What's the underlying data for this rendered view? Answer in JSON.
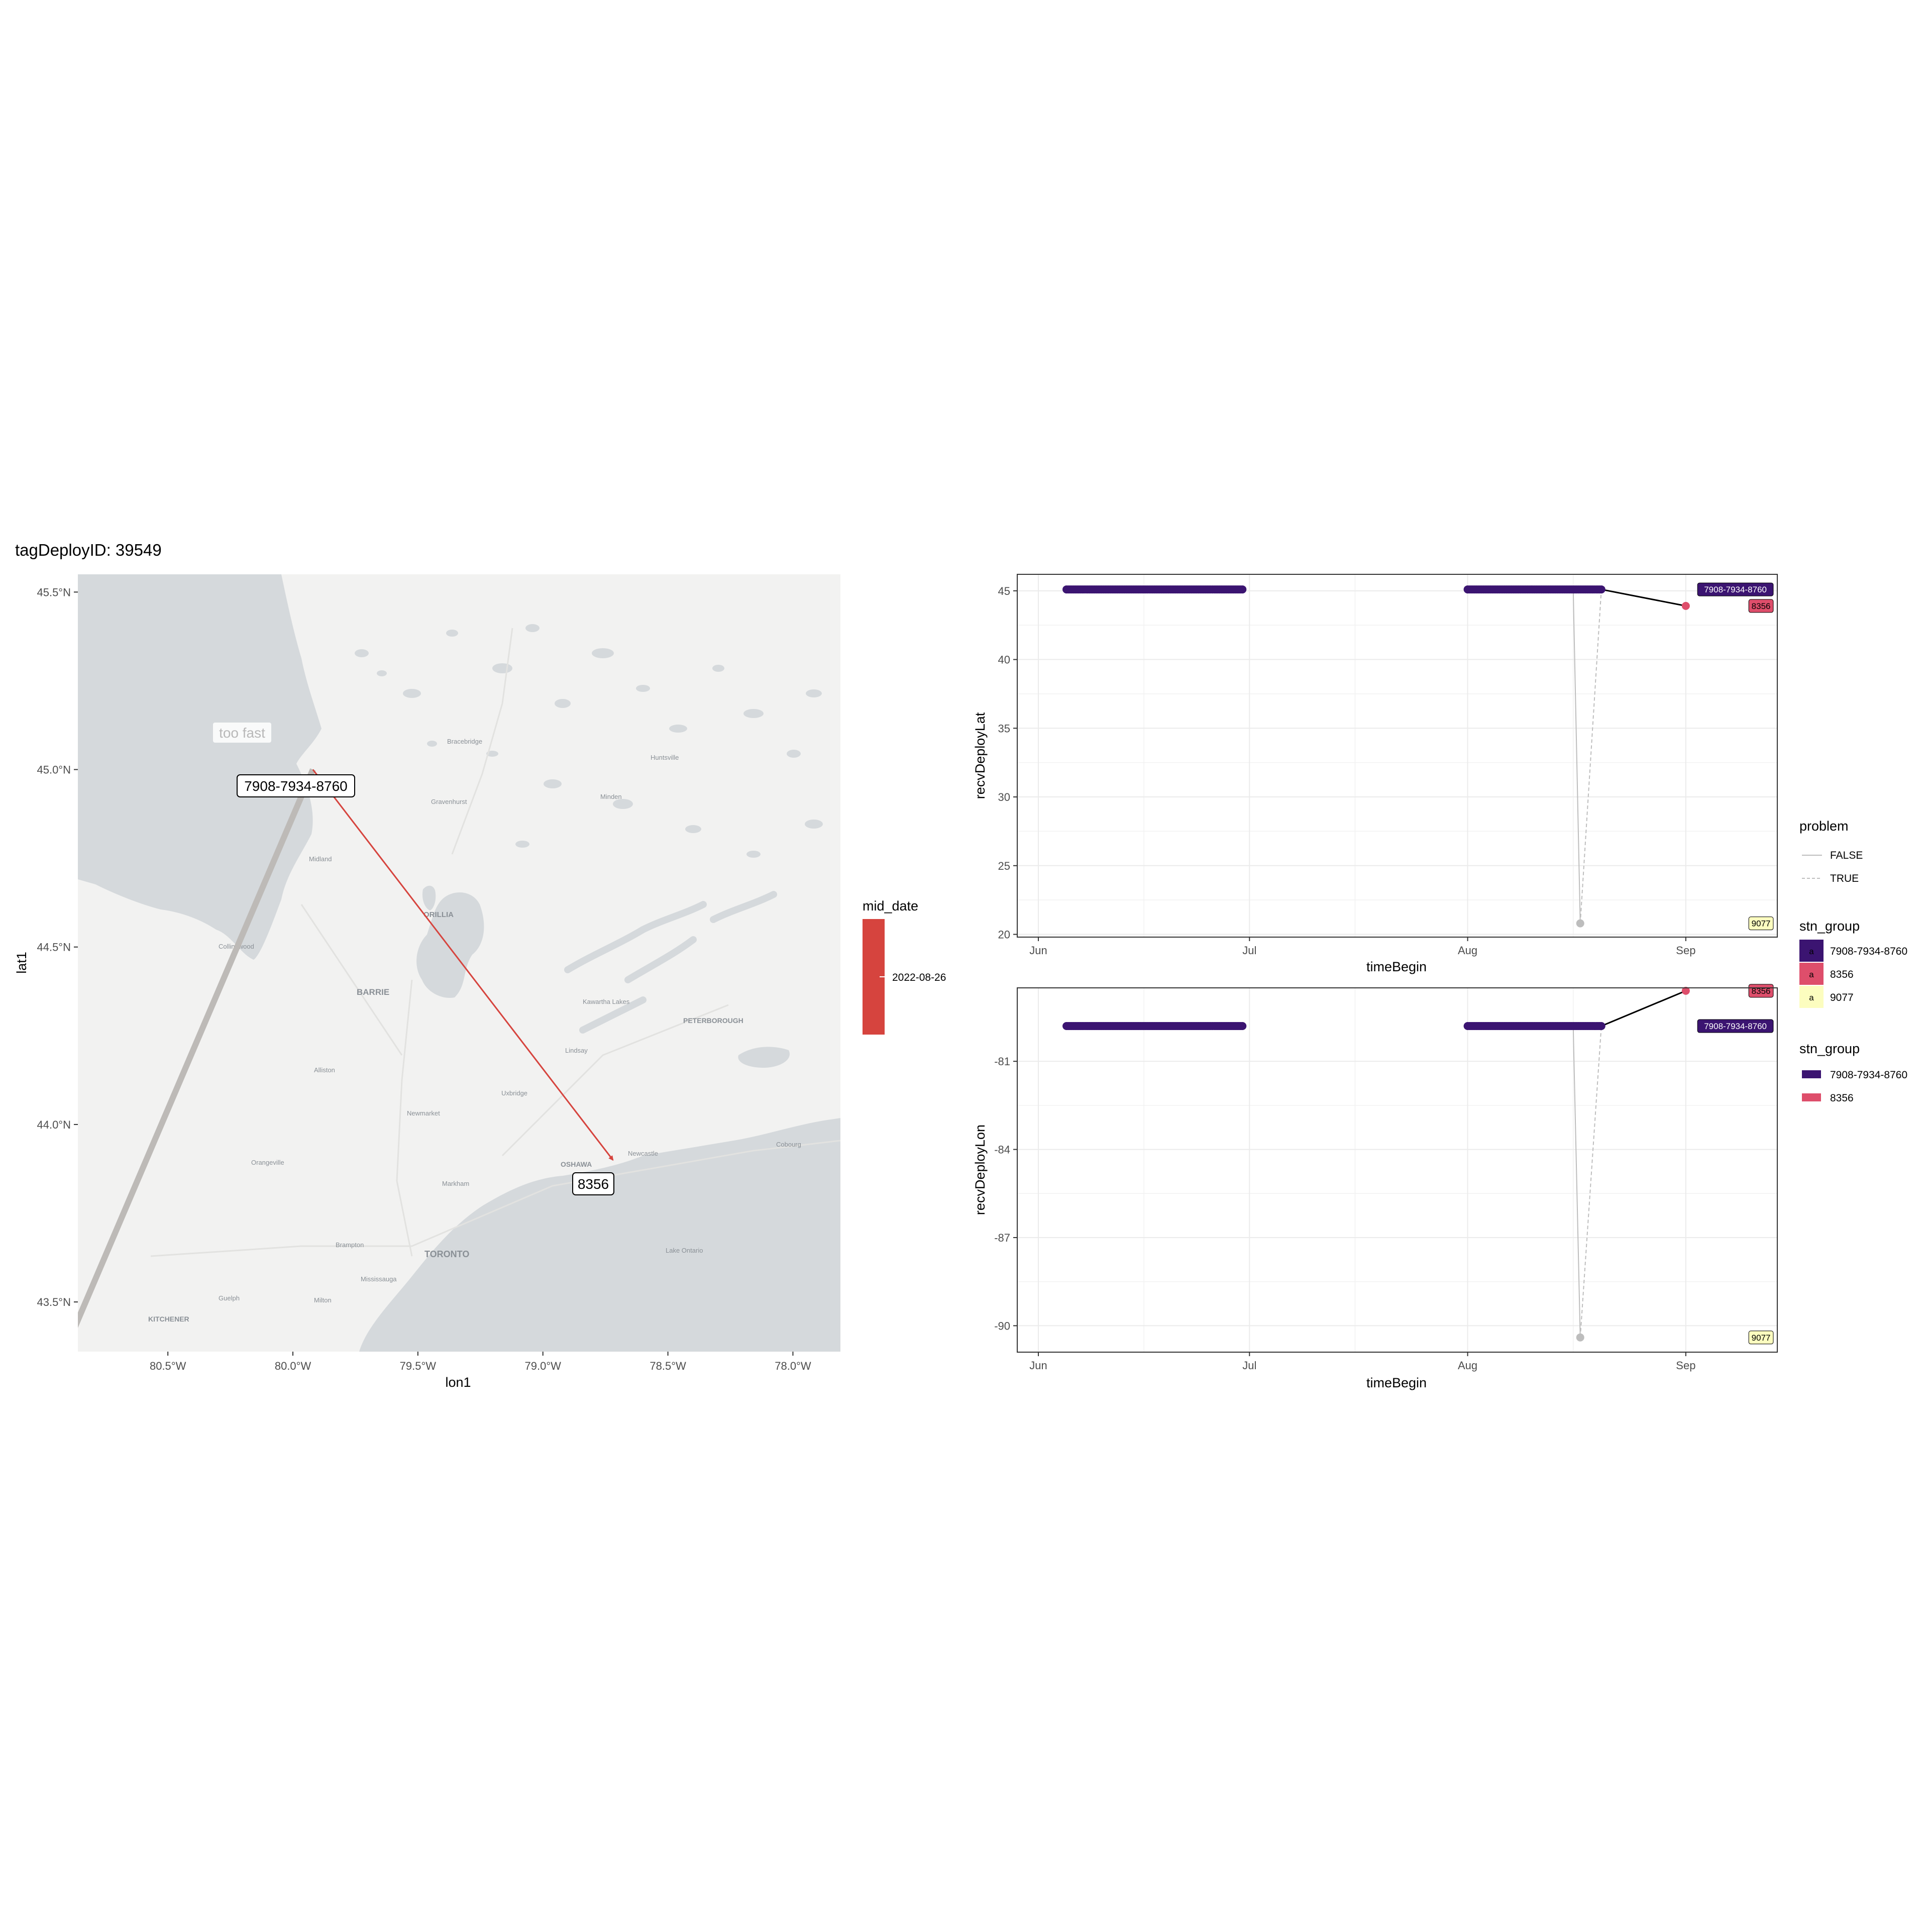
{
  "title": "tagDeployID: 39549",
  "map": {
    "xlabel": "lon1",
    "ylabel": "lat1",
    "x_ticks": [
      "80.5°W",
      "80.0°W",
      "79.5°W",
      "79.0°W",
      "78.5°W",
      "78.0°W"
    ],
    "x_tick_values": [
      -80.5,
      -80.0,
      -79.5,
      -79.0,
      -78.5,
      -78.0
    ],
    "y_ticks": [
      "45.5°N",
      "45.0°N",
      "44.5°N",
      "44.0°N",
      "43.5°N"
    ],
    "y_tick_values": [
      45.5,
      45.0,
      44.5,
      44.0,
      43.5
    ],
    "xlim": [
      -80.86,
      -77.81
    ],
    "ylim": [
      43.36,
      45.55
    ],
    "place_names": {
      "barrie": "BARRIE",
      "orillia": "ORILLIA",
      "toronto": "TORONTO",
      "oshawa": "OSHAWA",
      "peterborough": "PETERBOROUGH",
      "kitchener": "KITCHENER",
      "bracebridge": "Bracebridge",
      "huntsville": "Huntsville",
      "gravenhurst": "Gravenhurst",
      "newmarket": "Newmarket",
      "guelph": "Guelph",
      "brampton": "Brampton",
      "markham": "Markham",
      "kawartha": "Kawartha Lakes",
      "lindsay": "Lindsay",
      "uxbridge": "Uxbridge",
      "cobourg": "Cobourg",
      "orangeville": "Orangeville",
      "milton": "Milton",
      "mississauga": "Mississauga",
      "alliston": "Alliston",
      "collingwood": "Collingwood",
      "midland": "Midland",
      "newcastle": "Newcastle",
      "minden": "Minden",
      "lake_ontario": "Lake Ontario"
    },
    "labels": {
      "too_fast": "too fast",
      "stn_a": "7908-7934-8760",
      "stn_b": "8356"
    },
    "tracks": [
      {
        "from": [
          -80.95,
          43.3
        ],
        "to": [
          -79.92,
          45.0
        ],
        "problem": true,
        "color": "#bdbab7"
      },
      {
        "from": [
          -79.92,
          45.0
        ],
        "to": [
          -78.72,
          43.9
        ],
        "problem": false,
        "color": "#d6443e"
      }
    ],
    "colors": {
      "land": "#f2f2f1",
      "water": "#d5d9dc",
      "track": "#d6443e",
      "problem_track": "#bdbab7"
    }
  },
  "mid_date_legend": {
    "title": "mid_date",
    "label": "2022-08-26",
    "color": "#d6443e"
  },
  "legends": {
    "problem": {
      "title": "problem",
      "items": [
        {
          "label": "FALSE",
          "style": "solid"
        },
        {
          "label": "TRUE",
          "style": "dashed"
        }
      ]
    },
    "stn_group_fill": {
      "title": "stn_group",
      "key_text": "a",
      "items": [
        {
          "label": "7908-7934-8760",
          "color": "#3b1471"
        },
        {
          "label": "8356",
          "color": "#de4e6b"
        },
        {
          "label": "9077",
          "color": "#fcfdbf"
        }
      ]
    },
    "stn_group_line": {
      "title": "stn_group",
      "items": [
        {
          "label": "7908-7934-8760",
          "color": "#3b1471"
        },
        {
          "label": "8356",
          "color": "#de4e6b"
        }
      ]
    }
  },
  "chart_data": [
    {
      "type": "scatter",
      "xlabel": "timeBegin",
      "ylabel": "recvDeployLat",
      "x_ticks": [
        "Jun",
        "Jul",
        "Aug",
        "Sep"
      ],
      "x_tick_values": [
        "2022-06-01",
        "2022-07-01",
        "2022-08-01",
        "2022-09-01"
      ],
      "xlim": [
        "2022-05-29",
        "2022-09-14"
      ],
      "y_ticks": [
        "20",
        "25",
        "30",
        "35",
        "40",
        "45"
      ],
      "y_tick_values": [
        20,
        25,
        30,
        35,
        40,
        45
      ],
      "ylim": [
        19.8,
        46.2
      ],
      "grid": true,
      "series": [
        {
          "name": "7908-7934-8760",
          "color": "#3b1471",
          "x_range": [
            [
              "2022-06-05",
              "2022-06-30"
            ],
            [
              "2022-08-01",
              "2022-08-20"
            ]
          ],
          "y": 45.1
        },
        {
          "name": "8356",
          "color": "#de4e6b",
          "x": [
            "2022-09-01"
          ],
          "y": [
            43.9
          ]
        },
        {
          "name": "9077",
          "color": "#bdbdbd",
          "x": [
            "2022-08-17"
          ],
          "y": [
            20.8
          ]
        }
      ],
      "path": {
        "solid_gray": [
          [
            "2022-08-16",
            45.1
          ],
          [
            "2022-08-17",
            20.8
          ]
        ],
        "dashed_gray": [
          [
            "2022-08-17",
            20.8
          ],
          [
            "2022-08-20",
            45.1
          ]
        ],
        "black": [
          [
            "2022-08-20",
            45.1
          ],
          [
            "2022-09-01",
            43.9
          ]
        ]
      },
      "end_labels": [
        {
          "text": "7908-7934-8760",
          "y": 45.1,
          "fill": "#3b1471",
          "text_color": "#ffffff"
        },
        {
          "text": "8356",
          "y": 43.9,
          "fill": "#de4e6b",
          "text_color": "#000000"
        },
        {
          "text": "9077",
          "y": 20.8,
          "fill": "#fcfdbf",
          "text_color": "#000000"
        }
      ]
    },
    {
      "type": "scatter",
      "xlabel": "timeBegin",
      "ylabel": "recvDeployLon",
      "x_ticks": [
        "Jun",
        "Jul",
        "Aug",
        "Sep"
      ],
      "x_tick_values": [
        "2022-06-01",
        "2022-07-01",
        "2022-08-01",
        "2022-09-01"
      ],
      "xlim": [
        "2022-05-29",
        "2022-09-14"
      ],
      "y_ticks": [
        "-81",
        "-84",
        "-87",
        "-90"
      ],
      "y_tick_values": [
        -81,
        -84,
        -87,
        -90
      ],
      "ylim": [
        -90.9,
        -78.5
      ],
      "grid": true,
      "series": [
        {
          "name": "7908-7934-8760",
          "color": "#3b1471",
          "x_range": [
            [
              "2022-06-05",
              "2022-06-30"
            ],
            [
              "2022-08-01",
              "2022-08-20"
            ]
          ],
          "y": -79.8
        },
        {
          "name": "8356",
          "color": "#de4e6b",
          "x": [
            "2022-09-01"
          ],
          "y": [
            -78.6
          ]
        },
        {
          "name": "9077",
          "color": "#bdbdbd",
          "x": [
            "2022-08-17"
          ],
          "y": [
            -90.4
          ]
        }
      ],
      "path": {
        "solid_gray": [
          [
            "2022-08-16",
            -79.8
          ],
          [
            "2022-08-17",
            -90.4
          ]
        ],
        "dashed_gray": [
          [
            "2022-08-17",
            -90.4
          ],
          [
            "2022-08-20",
            -79.8
          ]
        ],
        "black": [
          [
            "2022-08-20",
            -79.8
          ],
          [
            "2022-09-01",
            -78.6
          ]
        ]
      },
      "end_labels": [
        {
          "text": "8356",
          "y": -78.6,
          "fill": "#de4e6b",
          "text_color": "#000000"
        },
        {
          "text": "7908-7934-8760",
          "y": -79.8,
          "fill": "#3b1471",
          "text_color": "#ffffff"
        },
        {
          "text": "9077",
          "y": -90.4,
          "fill": "#fcfdbf",
          "text_color": "#000000"
        }
      ]
    }
  ]
}
